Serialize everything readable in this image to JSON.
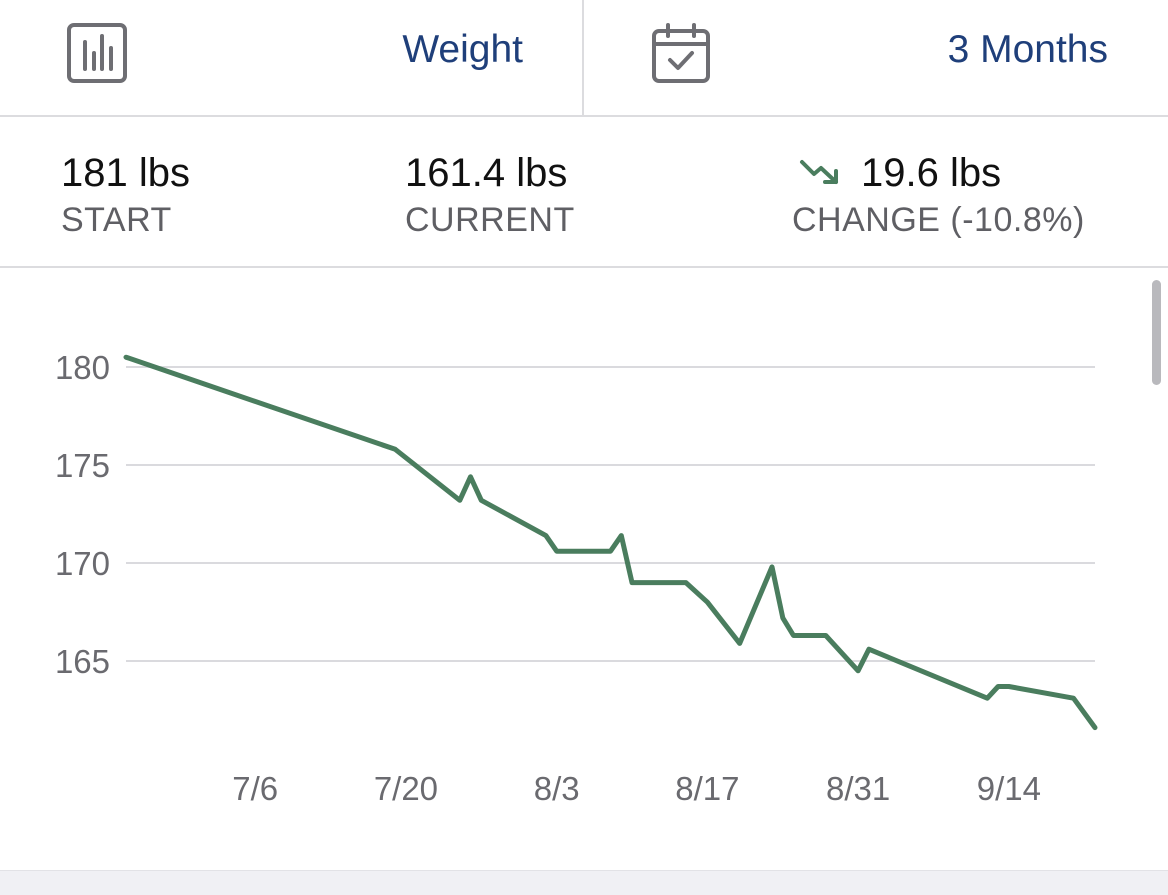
{
  "header": {
    "metric_label": "Weight",
    "metric_icon": "bar-chart-icon",
    "range_label": "3 Months",
    "range_icon": "calendar-check-icon",
    "accent_color": "#1f3f7a"
  },
  "stats": {
    "start": {
      "value": "181 lbs",
      "label": "START"
    },
    "current": {
      "value": "161.4 lbs",
      "label": "CURRENT"
    },
    "change": {
      "value": "19.6 lbs",
      "label": "CHANGE (-10.8%)",
      "icon": "trend-down-icon",
      "color": "#4a7d5e"
    }
  },
  "chart_data": {
    "type": "line",
    "title": "",
    "xlabel": "",
    "ylabel": "",
    "x_ticks": [
      "7/6",
      "7/20",
      "8/3",
      "8/17",
      "8/31",
      "9/14"
    ],
    "y_ticks": [
      165,
      170,
      175,
      180
    ],
    "ylim": [
      161.5,
      181
    ],
    "xlim": [
      "6/24",
      "9/22"
    ],
    "grid": true,
    "line_color": "#4a7d5e",
    "series": [
      {
        "points": [
          [
            "6/24",
            180.5
          ],
          [
            "7/19",
            175.8
          ],
          [
            "7/25",
            173.2
          ],
          [
            "7/26",
            174.4
          ],
          [
            "7/27",
            173.2
          ],
          [
            "8/2",
            171.4
          ],
          [
            "8/3",
            170.6
          ],
          [
            "8/8",
            170.6
          ],
          [
            "8/9",
            171.4
          ],
          [
            "8/10",
            169.0
          ],
          [
            "8/15",
            169.0
          ],
          [
            "8/17",
            168.0
          ],
          [
            "8/20",
            165.9
          ],
          [
            "8/23",
            169.8
          ],
          [
            "8/24",
            167.2
          ],
          [
            "8/25",
            166.3
          ],
          [
            "8/28",
            166.3
          ],
          [
            "8/31",
            164.5
          ],
          [
            "9/1",
            165.6
          ],
          [
            "9/12",
            163.1
          ],
          [
            "9/13",
            163.7
          ],
          [
            "9/14",
            163.7
          ],
          [
            "9/20",
            163.1
          ],
          [
            "9/22",
            161.6
          ]
        ]
      }
    ]
  }
}
